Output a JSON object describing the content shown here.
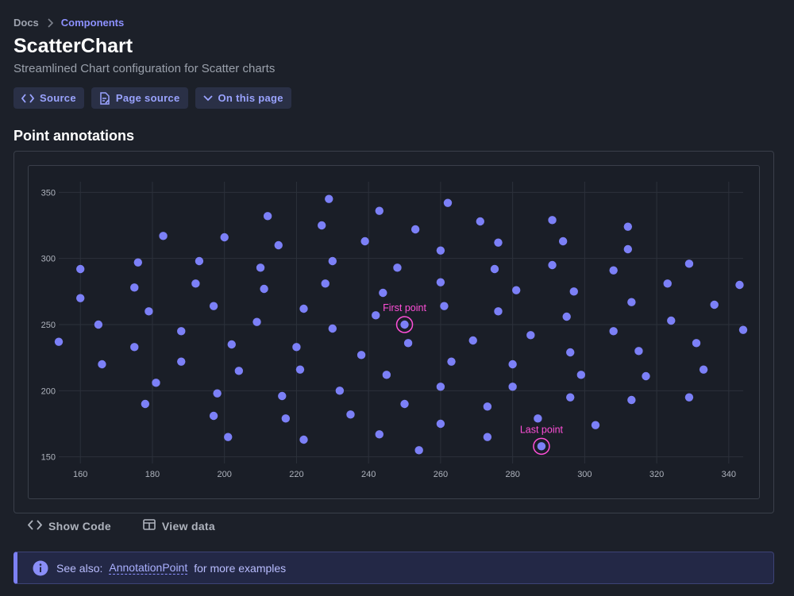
{
  "breadcrumb": {
    "parent": "Docs",
    "current": "Components"
  },
  "page": {
    "title": "ScatterChart",
    "subtitle": "Streamlined Chart configuration for Scatter charts"
  },
  "buttons": {
    "source": "Source",
    "page_source": "Page source",
    "on_this_page": "On this page"
  },
  "section": {
    "title": "Point annotations"
  },
  "links": {
    "show_code": "Show Code",
    "view_data": "View data"
  },
  "callout": {
    "prefix": "See also:",
    "link": "AnnotationPoint",
    "suffix": "for more examples"
  },
  "colors": {
    "accent": "#7c80f2",
    "point": "#7c80f7",
    "annotation": "#ff4fd8",
    "background": "#1c2029"
  },
  "chart_data": {
    "type": "scatter",
    "xlim": [
      154,
      344
    ],
    "ylim": [
      145,
      355
    ],
    "x_ticks": [
      160,
      180,
      200,
      220,
      240,
      260,
      280,
      300,
      320,
      340
    ],
    "y_ticks": [
      150,
      200,
      250,
      300,
      350
    ],
    "grid": true,
    "points": [
      [
        154,
        237
      ],
      [
        160,
        292
      ],
      [
        160,
        270
      ],
      [
        165,
        250
      ],
      [
        166,
        220
      ],
      [
        175,
        278
      ],
      [
        175,
        233
      ],
      [
        176,
        297
      ],
      [
        178,
        190
      ],
      [
        179,
        260
      ],
      [
        181,
        206
      ],
      [
        183,
        317
      ],
      [
        188,
        245
      ],
      [
        188,
        222
      ],
      [
        192,
        281
      ],
      [
        193,
        298
      ],
      [
        197,
        264
      ],
      [
        197,
        181
      ],
      [
        198,
        198
      ],
      [
        200,
        316
      ],
      [
        201,
        165
      ],
      [
        202,
        235
      ],
      [
        204,
        215
      ],
      [
        209,
        252
      ],
      [
        210,
        293
      ],
      [
        211,
        277
      ],
      [
        212,
        332
      ],
      [
        215,
        310
      ],
      [
        216,
        196
      ],
      [
        217,
        179
      ],
      [
        220,
        233
      ],
      [
        221,
        216
      ],
      [
        222,
        262
      ],
      [
        222,
        163
      ],
      [
        227,
        325
      ],
      [
        228,
        281
      ],
      [
        229,
        345
      ],
      [
        230,
        298
      ],
      [
        230,
        247
      ],
      [
        232,
        200
      ],
      [
        235,
        182
      ],
      [
        238,
        227
      ],
      [
        239,
        313
      ],
      [
        242,
        257
      ],
      [
        243,
        336
      ],
      [
        243,
        167
      ],
      [
        244,
        274
      ],
      [
        245,
        212
      ],
      [
        248,
        293
      ],
      [
        250,
        250
      ],
      [
        250,
        190
      ],
      [
        251,
        236
      ],
      [
        253,
        322
      ],
      [
        254,
        155
      ],
      [
        260,
        306
      ],
      [
        260,
        282
      ],
      [
        260,
        203
      ],
      [
        260,
        175
      ],
      [
        261,
        264
      ],
      [
        262,
        342
      ],
      [
        263,
        222
      ],
      [
        269,
        238
      ],
      [
        271,
        328
      ],
      [
        273,
        188
      ],
      [
        273,
        165
      ],
      [
        275,
        292
      ],
      [
        276,
        312
      ],
      [
        276,
        260
      ],
      [
        280,
        220
      ],
      [
        280,
        203
      ],
      [
        281,
        276
      ],
      [
        285,
        242
      ],
      [
        287,
        179
      ],
      [
        288,
        158
      ],
      [
        291,
        295
      ],
      [
        291,
        329
      ],
      [
        294,
        313
      ],
      [
        295,
        256
      ],
      [
        296,
        229
      ],
      [
        296,
        195
      ],
      [
        297,
        275
      ],
      [
        299,
        212
      ],
      [
        303,
        174
      ],
      [
        308,
        291
      ],
      [
        308,
        245
      ],
      [
        312,
        324
      ],
      [
        312,
        307
      ],
      [
        313,
        267
      ],
      [
        313,
        193
      ],
      [
        315,
        230
      ],
      [
        317,
        211
      ],
      [
        323,
        281
      ],
      [
        324,
        253
      ],
      [
        329,
        296
      ],
      [
        329,
        195
      ],
      [
        331,
        236
      ],
      [
        333,
        216
      ],
      [
        336,
        265
      ],
      [
        343,
        280
      ],
      [
        344,
        246
      ]
    ],
    "annotations": [
      {
        "label": "First point",
        "x": 250,
        "y": 250
      },
      {
        "label": "Last point",
        "x": 288,
        "y": 158
      }
    ]
  }
}
